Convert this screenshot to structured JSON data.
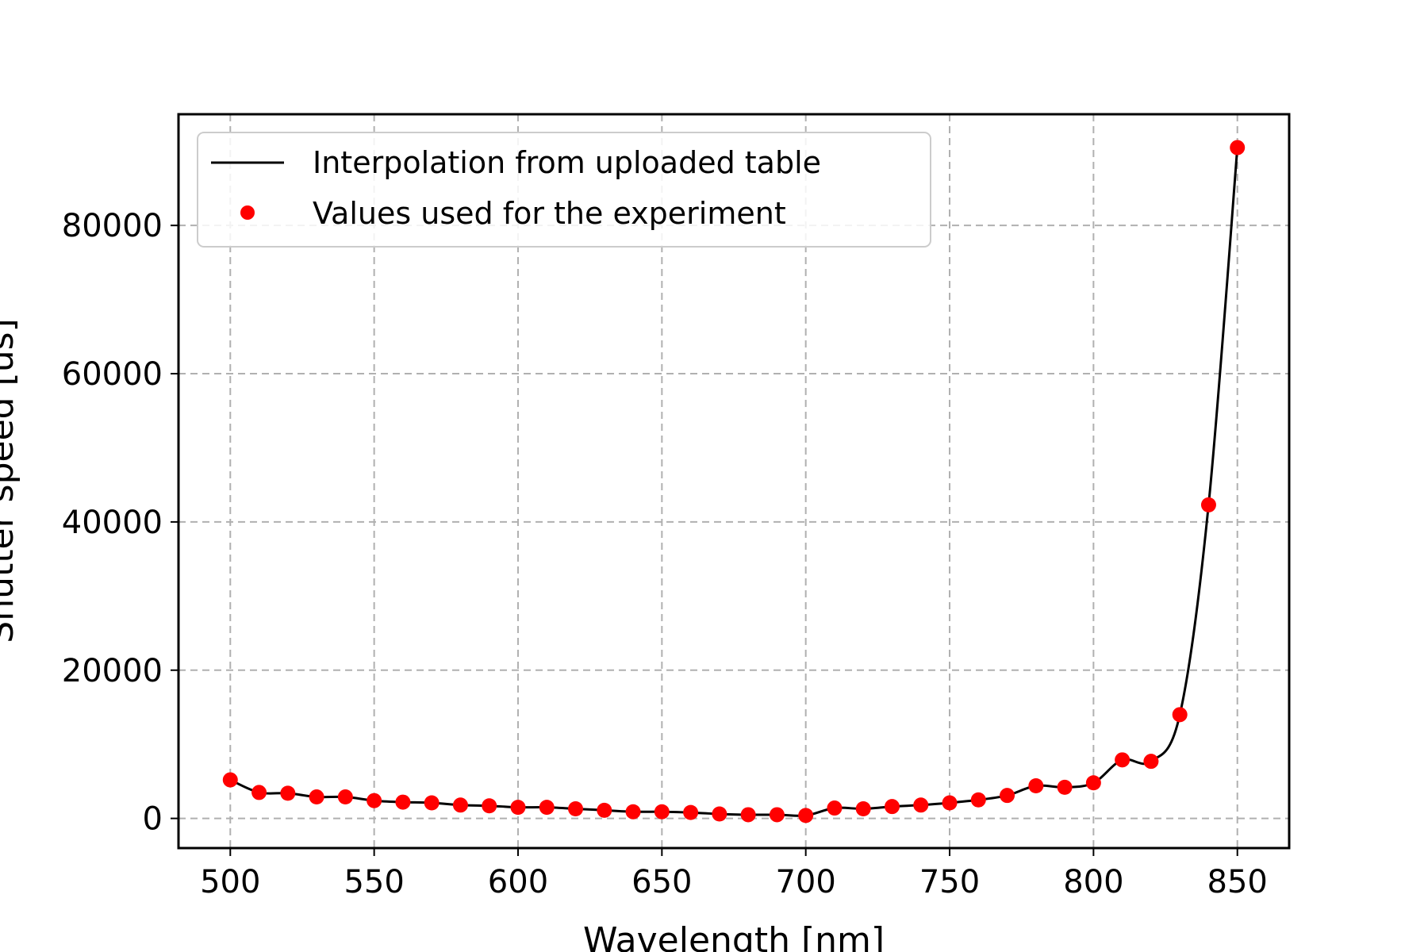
{
  "chart_data": {
    "type": "line",
    "xlabel": "Wavelength [nm]",
    "ylabel": "Shutter speed [us]",
    "xlim": [
      482,
      868
    ],
    "ylim": [
      -4000,
      95000
    ],
    "x_ticks": [
      500,
      550,
      600,
      650,
      700,
      750,
      800,
      850
    ],
    "y_ticks": [
      0,
      20000,
      40000,
      60000,
      80000
    ],
    "grid": true,
    "legend_position": "top-left",
    "series": [
      {
        "name": "Interpolation from uploaded table",
        "kind": "line",
        "color": "#000000",
        "x": [
          500,
          510,
          520,
          530,
          540,
          550,
          560,
          570,
          580,
          590,
          600,
          610,
          620,
          630,
          640,
          650,
          660,
          670,
          680,
          690,
          700,
          710,
          720,
          730,
          740,
          750,
          760,
          770,
          780,
          790,
          800,
          810,
          820,
          830,
          840,
          850
        ],
        "y": [
          5200,
          3500,
          3400,
          2900,
          2900,
          2400,
          2200,
          2100,
          1800,
          1700,
          1500,
          1500,
          1300,
          1100,
          900,
          900,
          800,
          600,
          500,
          500,
          400,
          1400,
          1300,
          1600,
          1800,
          2100,
          2500,
          3100,
          4400,
          4200,
          4800,
          7900,
          7700,
          14000,
          42300,
          90500
        ]
      },
      {
        "name": "Values used for the experiment",
        "kind": "scatter",
        "color": "#ff0000",
        "x": [
          500,
          510,
          520,
          530,
          540,
          550,
          560,
          570,
          580,
          590,
          600,
          610,
          620,
          630,
          640,
          650,
          660,
          670,
          680,
          690,
          700,
          710,
          720,
          730,
          740,
          750,
          760,
          770,
          780,
          790,
          800,
          810,
          820,
          830,
          840,
          850
        ],
        "y": [
          5200,
          3500,
          3400,
          2900,
          2900,
          2400,
          2200,
          2100,
          1800,
          1700,
          1500,
          1500,
          1300,
          1100,
          900,
          900,
          800,
          600,
          500,
          500,
          400,
          1400,
          1300,
          1600,
          1800,
          2100,
          2500,
          3100,
          4400,
          4200,
          4800,
          7900,
          7700,
          14000,
          42300,
          90500
        ]
      }
    ]
  }
}
